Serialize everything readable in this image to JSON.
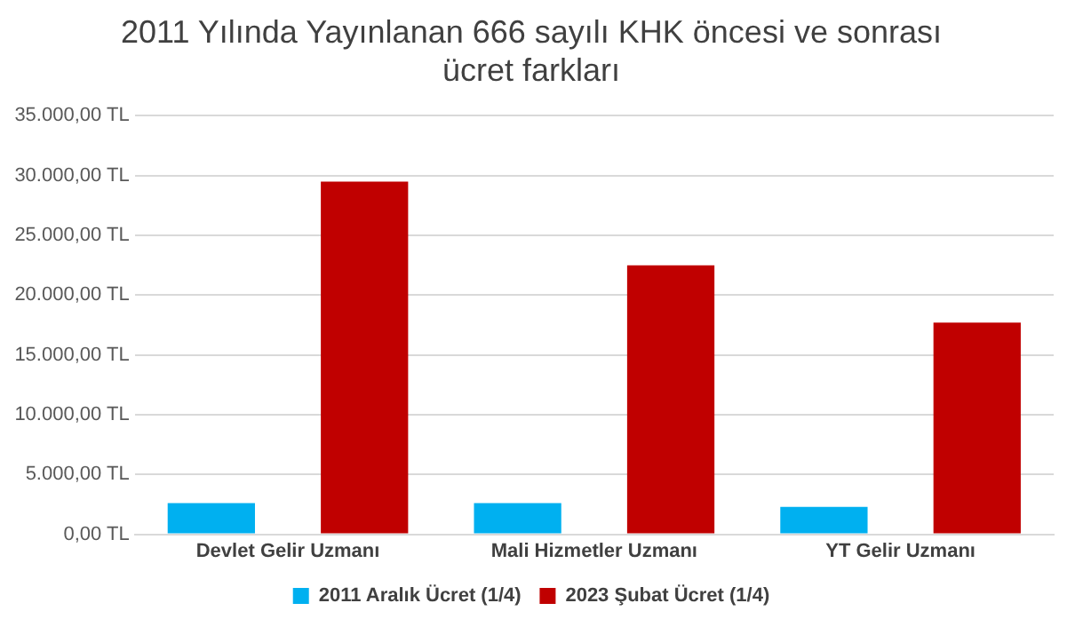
{
  "chart_data": {
    "type": "bar",
    "title": "2011 Yılında Yayınlanan 666 sayılı KHK öncesi ve sonrası ücret farkları",
    "categories": [
      "Devlet Gelir Uzmanı",
      "Mali Hizmetler Uzmanı",
      "YT Gelir Uzmanı"
    ],
    "series": [
      {
        "name": "2011 Aralık Ücret (1/4)",
        "color": "#00b0f0",
        "values": [
          2600,
          2600,
          2300
        ]
      },
      {
        "name": "2023 Şubat Ücret (1/4)",
        "color": "#c00000",
        "values": [
          29500,
          22500,
          17700
        ]
      }
    ],
    "ylim": [
      0,
      35000
    ],
    "yticks": [
      {
        "value": 0,
        "label": "0,00 TL"
      },
      {
        "value": 5000,
        "label": "5.000,00 TL"
      },
      {
        "value": 10000,
        "label": "10.000,00 TL"
      },
      {
        "value": 15000,
        "label": "15.000,00 TL"
      },
      {
        "value": 20000,
        "label": "20.000,00 TL"
      },
      {
        "value": 25000,
        "label": "25.000,00 TL"
      },
      {
        "value": 30000,
        "label": "30.000,00 TL"
      },
      {
        "value": 35000,
        "label": "35.000,00 TL"
      }
    ],
    "grid": "y",
    "legend": "bottom"
  }
}
